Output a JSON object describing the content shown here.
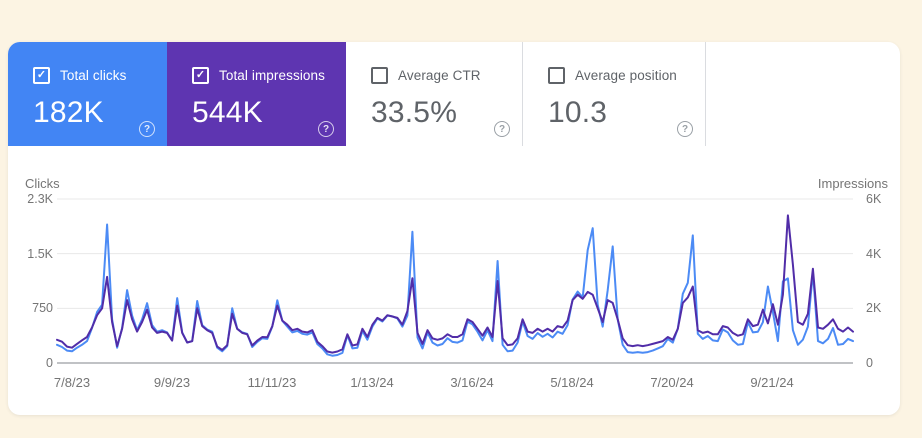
{
  "cards": [
    {
      "id": "total-clicks",
      "label": "Total clicks",
      "value": "182K",
      "checked": true,
      "bg": "#4285F4",
      "style": "colored"
    },
    {
      "id": "total-impressions",
      "label": "Total impressions",
      "value": "544K",
      "checked": true,
      "bg": "#5E35B1",
      "style": "colored"
    },
    {
      "id": "average-ctr",
      "label": "Average CTR",
      "value": "33.5%",
      "checked": false,
      "bg": "#FFFFFF",
      "style": "plain"
    },
    {
      "id": "average-position",
      "label": "Average position",
      "value": "10.3",
      "checked": false,
      "bg": "#FFFFFF",
      "style": "plain"
    }
  ],
  "help_glyph": "?",
  "check_glyph": "✓",
  "chart_data": {
    "type": "line",
    "grid": true,
    "left_axis": {
      "label": "Clicks",
      "max": 2250,
      "ticks": [
        "0",
        "750",
        "1.5K",
        "2.3K"
      ]
    },
    "right_axis": {
      "label": "Impressions",
      "max": 6000,
      "ticks": [
        "0",
        "2K",
        "4K",
        "6K"
      ]
    },
    "x_ticks": [
      "7/8/23",
      "9/9/23",
      "11/11/23",
      "1/13/24",
      "3/16/24",
      "5/18/24",
      "7/20/24",
      "9/21/24"
    ],
    "series": [
      {
        "name": "Clicks",
        "axis": "left",
        "color": "#4C8BF5",
        "values": [
          250,
          220,
          170,
          160,
          210,
          250,
          300,
          480,
          700,
          800,
          1900,
          600,
          210,
          480,
          1000,
          650,
          450,
          600,
          820,
          520,
          430,
          450,
          420,
          310,
          890,
          420,
          280,
          300,
          850,
          520,
          460,
          430,
          210,
          160,
          230,
          750,
          470,
          420,
          400,
          220,
          290,
          340,
          330,
          500,
          860,
          580,
          500,
          420,
          440,
          400,
          390,
          420,
          260,
          200,
          120,
          100,
          110,
          140,
          380,
          200,
          210,
          440,
          320,
          500,
          610,
          570,
          650,
          640,
          610,
          500,
          650,
          1800,
          350,
          200,
          420,
          280,
          240,
          260,
          340,
          290,
          280,
          310,
          570,
          530,
          430,
          310,
          450,
          300,
          1400,
          250,
          160,
          170,
          280,
          570,
          370,
          330,
          410,
          360,
          400,
          350,
          430,
          400,
          520,
          870,
          980,
          900,
          1550,
          1850,
          800,
          500,
          1000,
          1600,
          600,
          250,
          150,
          140,
          150,
          140,
          150,
          170,
          200,
          230,
          330,
          280,
          470,
          950,
          1100,
          1750,
          400,
          330,
          370,
          310,
          300,
          460,
          420,
          310,
          250,
          260,
          560,
          420,
          430,
          560,
          1050,
          700,
          300,
          1120,
          1160,
          450,
          250,
          320,
          500,
          1250,
          300,
          270,
          330,
          480,
          250,
          260,
          330,
          300
        ]
      },
      {
        "name": "Impressions",
        "axis": "right",
        "color": "#512DA8",
        "values": [
          850,
          780,
          600,
          560,
          700,
          830,
          950,
          1300,
          1750,
          2000,
          3150,
          1500,
          620,
          1250,
          2300,
          1600,
          1150,
          1500,
          1950,
          1300,
          1100,
          1150,
          1100,
          820,
          2100,
          1100,
          750,
          800,
          2000,
          1350,
          1200,
          1100,
          600,
          480,
          650,
          1800,
          1250,
          1100,
          1050,
          640,
          820,
          950,
          940,
          1350,
          2100,
          1550,
          1400,
          1200,
          1250,
          1150,
          1120,
          1200,
          780,
          620,
          420,
          380,
          420,
          500,
          1050,
          640,
          680,
          1250,
          950,
          1400,
          1650,
          1550,
          1750,
          1700,
          1650,
          1400,
          1900,
          3100,
          1100,
          700,
          1200,
          900,
          850,
          900,
          1050,
          950,
          950,
          1050,
          1600,
          1500,
          1250,
          1000,
          1300,
          950,
          3000,
          900,
          650,
          680,
          900,
          1600,
          1150,
          1100,
          1250,
          1150,
          1250,
          1150,
          1350,
          1300,
          1550,
          2300,
          2500,
          2350,
          2600,
          2500,
          2000,
          1500,
          2300,
          2200,
          1600,
          900,
          650,
          620,
          650,
          620,
          650,
          700,
          750,
          800,
          950,
          850,
          1250,
          2200,
          2400,
          2800,
          1200,
          1100,
          1150,
          1050,
          1050,
          1350,
          1300,
          1100,
          1000,
          1050,
          1600,
          1350,
          1400,
          1950,
          1450,
          2150,
          1400,
          2500,
          5400,
          3600,
          1500,
          1400,
          1800,
          3450,
          1300,
          1250,
          1400,
          1600,
          1250,
          1150,
          1300,
          1150
        ]
      }
    ]
  }
}
